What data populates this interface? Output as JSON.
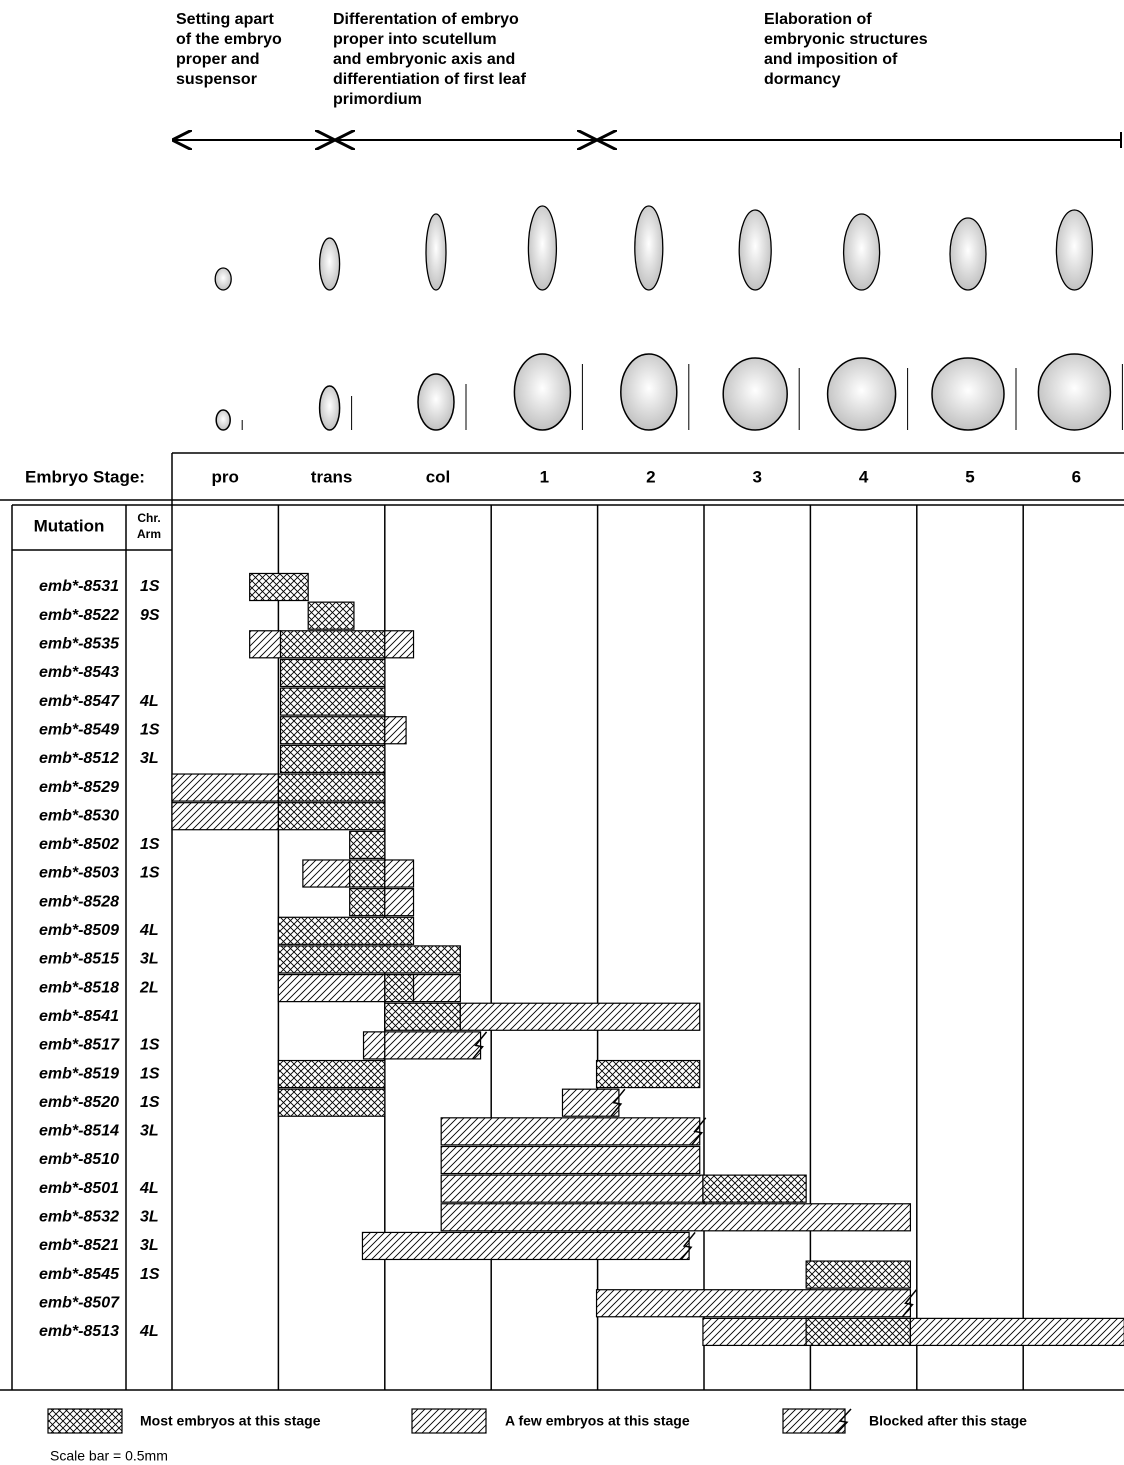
{
  "header": {
    "phases": [
      {
        "lines": [
          "Setting apart",
          "of the embryo",
          "proper and",
          "suspensor"
        ]
      },
      {
        "lines": [
          "Differentation of embryo",
          "proper into scutellum",
          "and embryonic axis and",
          "differentiation of first leaf",
          "primordium"
        ]
      },
      {
        "lines": [
          "Elaboration of",
          "embryonic structures",
          "and imposition of",
          "dormancy"
        ]
      }
    ]
  },
  "table": {
    "stage_label": "Embryo Stage:",
    "stages": [
      "pro",
      "trans",
      "col",
      "1",
      "2",
      "3",
      "4",
      "5",
      "6"
    ],
    "mutation_header": "Mutation",
    "arm_header": [
      "Chr.",
      "Arm"
    ],
    "rows": [
      {
        "mutation": "emb*-8531",
        "arm": "1S",
        "bars": [
          {
            "from": 0.73,
            "to": 1.28,
            "kind": 0
          }
        ]
      },
      {
        "mutation": "emb*-8522",
        "arm": "9S",
        "bars": [
          {
            "from": 1.28,
            "to": 1.71,
            "kind": 0
          }
        ]
      },
      {
        "mutation": "emb*-8535",
        "arm": null,
        "bars": [
          {
            "from": 0.73,
            "to": 1.02,
            "kind": 1
          },
          {
            "from": 1.02,
            "to": 2.0,
            "kind": 0
          },
          {
            "from": 2.0,
            "to": 2.27,
            "kind": 1
          }
        ]
      },
      {
        "mutation": "emb*-8543",
        "arm": null,
        "bars": [
          {
            "from": 1.02,
            "to": 2.0,
            "kind": 0
          }
        ]
      },
      {
        "mutation": "emb*-8547",
        "arm": "4L",
        "bars": [
          {
            "from": 1.02,
            "to": 2.0,
            "kind": 0
          }
        ]
      },
      {
        "mutation": "emb*-8549",
        "arm": "1S",
        "bars": [
          {
            "from": 1.02,
            "to": 2.0,
            "kind": 0
          },
          {
            "from": 2.0,
            "to": 2.2,
            "kind": 1
          }
        ]
      },
      {
        "mutation": "emb*-8512",
        "arm": "3L",
        "bars": [
          {
            "from": 1.02,
            "to": 2.0,
            "kind": 0
          }
        ]
      },
      {
        "mutation": "emb*-8529",
        "arm": null,
        "bars": [
          {
            "from": 0.0,
            "to": 1.0,
            "kind": 1
          },
          {
            "from": 1.0,
            "to": 2.0,
            "kind": 0
          }
        ]
      },
      {
        "mutation": "emb*-8530",
        "arm": null,
        "bars": [
          {
            "from": 0.0,
            "to": 1.0,
            "kind": 1
          },
          {
            "from": 1.0,
            "to": 2.0,
            "kind": 0
          }
        ]
      },
      {
        "mutation": "emb*-8502",
        "arm": "1S",
        "bars": [
          {
            "from": 1.67,
            "to": 2.0,
            "kind": 0
          }
        ]
      },
      {
        "mutation": "emb*-8503",
        "arm": "1S",
        "bars": [
          {
            "from": 1.23,
            "to": 1.67,
            "kind": 1
          },
          {
            "from": 1.67,
            "to": 2.0,
            "kind": 0
          },
          {
            "from": 2.0,
            "to": 2.27,
            "kind": 1
          }
        ]
      },
      {
        "mutation": "emb*-8528",
        "arm": null,
        "bars": [
          {
            "from": 1.67,
            "to": 2.0,
            "kind": 0
          },
          {
            "from": 2.0,
            "to": 2.27,
            "kind": 1
          }
        ]
      },
      {
        "mutation": "emb*-8509",
        "arm": "4L",
        "bars": [
          {
            "from": 1.0,
            "to": 2.27,
            "kind": 0
          }
        ]
      },
      {
        "mutation": "emb*-8515",
        "arm": "3L",
        "bars": [
          {
            "from": 1.0,
            "to": 2.71,
            "kind": 0
          }
        ]
      },
      {
        "mutation": "emb*-8518",
        "arm": "2L",
        "bars": [
          {
            "from": 1.0,
            "to": 2.0,
            "kind": 1
          },
          {
            "from": 2.0,
            "to": 2.27,
            "kind": 0
          },
          {
            "from": 2.27,
            "to": 2.71,
            "kind": 1
          }
        ]
      },
      {
        "mutation": "emb*-8541",
        "arm": null,
        "bars": [
          {
            "from": 2.0,
            "to": 2.71,
            "kind": 0
          },
          {
            "from": 2.71,
            "to": 4.96,
            "kind": 1
          }
        ]
      },
      {
        "mutation": "emb*-8517",
        "arm": "1S",
        "bars": [
          {
            "from": 1.8,
            "to": 2.0,
            "kind": 1
          },
          {
            "from": 2.0,
            "to": 2.9,
            "kind": 2
          }
        ]
      },
      {
        "mutation": "emb*-8519",
        "arm": "1S",
        "bars": [
          {
            "from": 1.0,
            "to": 2.0,
            "kind": 0
          },
          {
            "from": 3.99,
            "to": 4.96,
            "kind": 0
          }
        ]
      },
      {
        "mutation": "emb*-8520",
        "arm": "1S",
        "bars": [
          {
            "from": 1.0,
            "to": 2.0,
            "kind": 0
          },
          {
            "from": 3.67,
            "to": 4.2,
            "kind": 2
          }
        ]
      },
      {
        "mutation": "emb*-8514",
        "arm": "3L",
        "bars": [
          {
            "from": 2.53,
            "to": 4.96,
            "kind": 2
          }
        ]
      },
      {
        "mutation": "emb*-8510",
        "arm": null,
        "bars": [
          {
            "from": 2.53,
            "to": 4.96,
            "kind": 1
          }
        ]
      },
      {
        "mutation": "emb*-8501",
        "arm": "4L",
        "bars": [
          {
            "from": 2.53,
            "to": 4.99,
            "kind": 1
          },
          {
            "from": 4.99,
            "to": 5.96,
            "kind": 0
          }
        ]
      },
      {
        "mutation": "emb*-8532",
        "arm": "3L",
        "bars": [
          {
            "from": 2.53,
            "to": 6.94,
            "kind": 1
          }
        ]
      },
      {
        "mutation": "emb*-8521",
        "arm": "3L",
        "bars": [
          {
            "from": 1.79,
            "to": 4.86,
            "kind": 2
          }
        ]
      },
      {
        "mutation": "emb*-8545",
        "arm": "1S",
        "bars": [
          {
            "from": 5.96,
            "to": 6.94,
            "kind": 0
          }
        ]
      },
      {
        "mutation": "emb*-8507",
        "arm": null,
        "bars": [
          {
            "from": 3.99,
            "to": 6.94,
            "kind": 2
          }
        ]
      },
      {
        "mutation": "emb*-8513",
        "arm": "4L",
        "bars": [
          {
            "from": 4.99,
            "to": 5.96,
            "kind": 1
          },
          {
            "from": 5.96,
            "to": 6.94,
            "kind": 0
          },
          {
            "from": 6.94,
            "to": 8.95,
            "kind": 1
          }
        ]
      }
    ]
  },
  "legend": [
    "Most embryos at this stage",
    "A few embryos at this stage",
    "Blocked after this stage"
  ],
  "scale_note": "Scale bar = 0.5mm"
}
